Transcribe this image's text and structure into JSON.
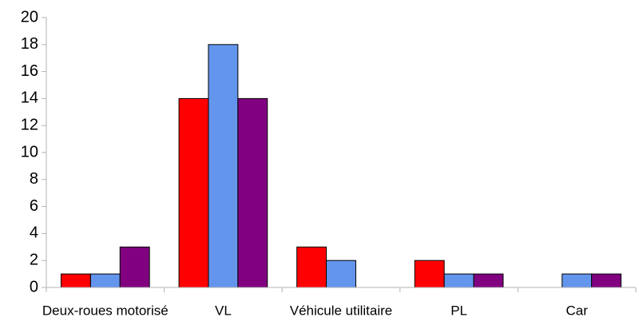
{
  "chart_data": {
    "type": "bar",
    "categories": [
      "Deux-roues motorisé",
      "VL",
      "Véhicule utilitaire",
      "PL",
      "Car"
    ],
    "series": [
      {
        "color": "#ff0000",
        "values": [
          1,
          14,
          3,
          2,
          0
        ]
      },
      {
        "color": "#6495ed",
        "values": [
          1,
          18,
          2,
          1,
          1
        ]
      },
      {
        "color": "#800080",
        "values": [
          3,
          14,
          0,
          1,
          1
        ]
      }
    ],
    "ylim": [
      0,
      20
    ],
    "yticks": [
      0,
      2,
      4,
      6,
      8,
      10,
      12,
      14,
      16,
      18,
      20
    ],
    "grid": false
  }
}
